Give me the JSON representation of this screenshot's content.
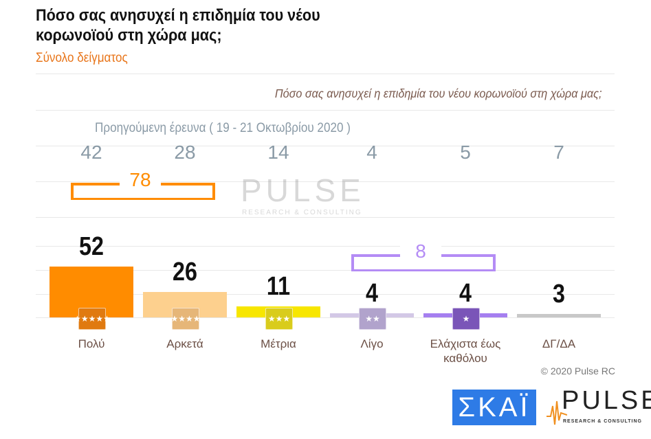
{
  "title": "Πόσο σας ανησυχεί η επιδημία του νέου κορωνοϊού στη χώρα μας;",
  "subtitle": "Σύνολο δείγματος",
  "chart_data": {
    "type": "bar",
    "title": "Πόσο σας ανησυχεί η επιδημία του νέου κορωνοϊού στη χώρα μας;",
    "categories": [
      "Πολύ",
      "Αρκετά",
      "Μέτρια",
      "Λίγο",
      "Ελάχιστα έως καθόλου",
      "ΔΓ/ΔΑ"
    ],
    "series": [
      {
        "name": "",
        "values": [
          52,
          26,
          11,
          4,
          4,
          3
        ]
      },
      {
        "name": "Προηγούμενη έρευνα ( 19 - 21 Οκτωβρίου 2020 )",
        "values": [
          42,
          28,
          14,
          4,
          5,
          7
        ]
      }
    ],
    "colors": [
      "#ff8c00",
      "#fdd08e",
      "#f7e600",
      "#d3c8e6",
      "#a57ff0",
      "#c8c8c8"
    ],
    "badge_colors": [
      "#e07a10",
      "#e6b678",
      "#d9cc1c",
      "#b1a3cc",
      "#7a55b8",
      ""
    ],
    "badge_stars": [
      5,
      4,
      3,
      2,
      1,
      0
    ],
    "groups": [
      {
        "label": "78",
        "categories": [
          "Πολύ",
          "Αρκετά"
        ],
        "color": "#ff8c00"
      },
      {
        "label": "8",
        "categories": [
          "Λίγο",
          "Ελάχιστα έως καθόλου"
        ],
        "color": "#b48cf5"
      }
    ],
    "prev_label": "Προηγούμενη έρευνα ( 19 - 21 Οκτωβρίου 2020 )",
    "grid": true
  },
  "copyright": "© 2020 Pulse RC",
  "logos": {
    "skai": "ΣΚΑΪ",
    "pulse": "PULSE",
    "pulse_sub": "RESEARCH & CONSULTING"
  }
}
